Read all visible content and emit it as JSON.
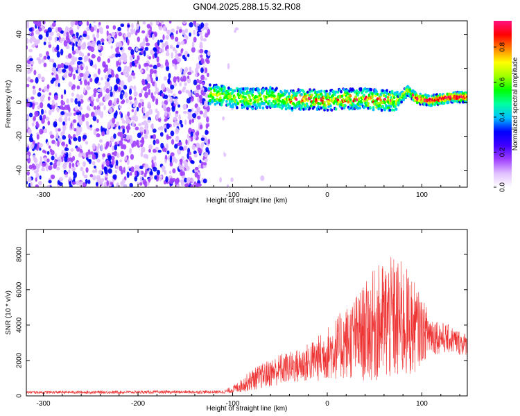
{
  "title": "GN04.2025.288.15.32.R08",
  "chart_data": [
    {
      "type": "heatmap",
      "xlabel": "Height of straight line (km)",
      "ylabel": "Frequency (Hz)",
      "xlim": [
        -318,
        148
      ],
      "ylim": [
        -50,
        48
      ],
      "xticks": [
        -300,
        -200,
        -100,
        0,
        100
      ],
      "xtick_labels": [
        "-300",
        "-200",
        "-100",
        "0",
        "100"
      ],
      "yticks": [
        -40,
        -20,
        0,
        20,
        40
      ],
      "ytick_labels": [
        "-40",
        "-20",
        "0",
        "20",
        "40"
      ],
      "colorbar": {
        "label": "Normalized spectral amplitude",
        "range": [
          0,
          0.95
        ],
        "ticks": [
          0.0,
          0.2,
          0.4,
          0.6,
          0.8
        ],
        "tick_labels": [
          "0.0",
          "0.2",
          "0.4",
          "0.6",
          "0.8"
        ],
        "colors": [
          "#ffffff",
          "#e0c0ff",
          "#a040ff",
          "#4000ff",
          "#0000ff",
          "#00c0ff",
          "#00ffa0",
          "#00ff00",
          "#a0ff00",
          "#ffff00",
          "#ff8000",
          "#ff0000",
          "#ff1080"
        ]
      },
      "noise_region_x": [
        -318,
        -125
      ],
      "signal_line": {
        "x": [
          -125,
          -100,
          -80,
          -60,
          -40,
          -20,
          0,
          20,
          40,
          60,
          75,
          85,
          95,
          110,
          130,
          148
        ],
        "y": [
          5,
          3,
          2,
          3,
          1,
          2,
          1,
          2,
          2,
          1,
          1,
          7,
          2,
          1,
          3,
          3
        ]
      }
    },
    {
      "type": "line",
      "xlabel": "Height of straight line (km)",
      "ylabel": "SNR (10 * v/v)",
      "xlim": [
        -318,
        148
      ],
      "ylim": [
        0,
        9400
      ],
      "xticks": [
        -300,
        -200,
        -100,
        0,
        100
      ],
      "xtick_labels": [
        "-300",
        "-200",
        "-100",
        "0",
        "100"
      ],
      "yticks": [
        0,
        2000,
        4000,
        6000,
        8000
      ],
      "ytick_labels": [
        "0",
        "2000",
        "4000",
        "6000",
        "8000"
      ],
      "color": "#ee3333",
      "envelope": {
        "x": [
          -318,
          -110,
          -100,
          -90,
          -80,
          -70,
          -60,
          -50,
          -40,
          -30,
          -20,
          -10,
          0,
          10,
          20,
          30,
          40,
          50,
          60,
          70,
          80,
          90,
          100,
          110,
          120,
          130,
          140,
          148
        ],
        "mean": [
          200,
          220,
          350,
          600,
          900,
          1100,
          1300,
          1500,
          1600,
          1700,
          1900,
          2100,
          2400,
          2700,
          3000,
          3300,
          3600,
          4000,
          4200,
          4300,
          4200,
          3900,
          3700,
          3500,
          3300,
          3200,
          3000,
          2900
        ],
        "amp": [
          80,
          90,
          200,
          400,
          600,
          700,
          800,
          900,
          900,
          1000,
          1100,
          1300,
          1500,
          1800,
          2100,
          2400,
          2800,
          3200,
          3500,
          3600,
          3400,
          2800,
          1800,
          1200,
          900,
          800,
          700,
          600
        ]
      }
    }
  ]
}
